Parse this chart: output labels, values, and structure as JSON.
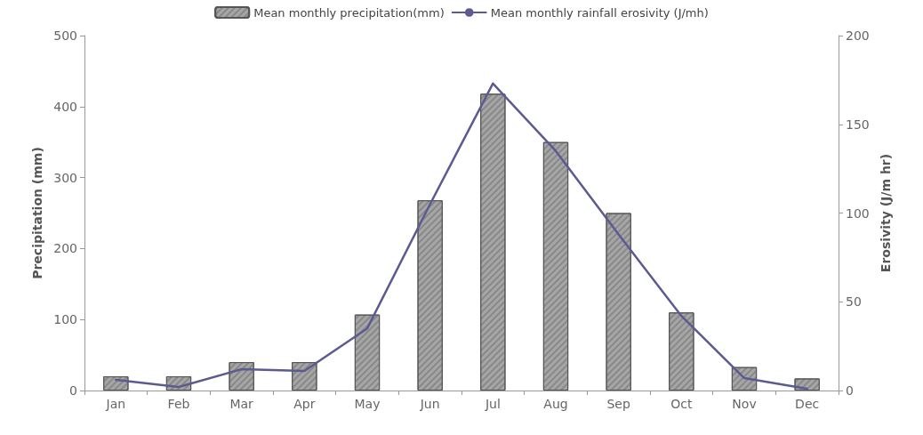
{
  "chart_data": {
    "type": "bar",
    "categories": [
      "Jan",
      "Feb",
      "Mar",
      "Apr",
      "May",
      "Jun",
      "Jul",
      "Aug",
      "Sep",
      "Oct",
      "Nov",
      "Dec"
    ],
    "series": [
      {
        "name": "Mean monthly precipitation(mm)",
        "color": "#a6a6a6",
        "values": [
          20,
          20,
          40,
          40,
          107,
          268,
          418,
          350,
          250,
          110,
          33,
          17
        ]
      },
      {
        "name": "Mean monthly rainfall erosivity (J/mh)",
        "type": "line",
        "axis": "y2",
        "color": "#5b5b91",
        "values": [
          6,
          2,
          12,
          11,
          35,
          105,
          173,
          135,
          88,
          42,
          7,
          1
        ]
      }
    ],
    "ylabel": "Precipitation (mm)",
    "y2label": "Erosivity (J/m hr)",
    "ylim": [
      0,
      500
    ],
    "yticks": [
      0,
      100,
      200,
      300,
      400,
      500
    ],
    "y2lim": [
      0,
      200
    ],
    "y2ticks": [
      0,
      50,
      100,
      150,
      200
    ],
    "grid": false,
    "legend": "top",
    "marker": "none",
    "line_style": "solid"
  }
}
